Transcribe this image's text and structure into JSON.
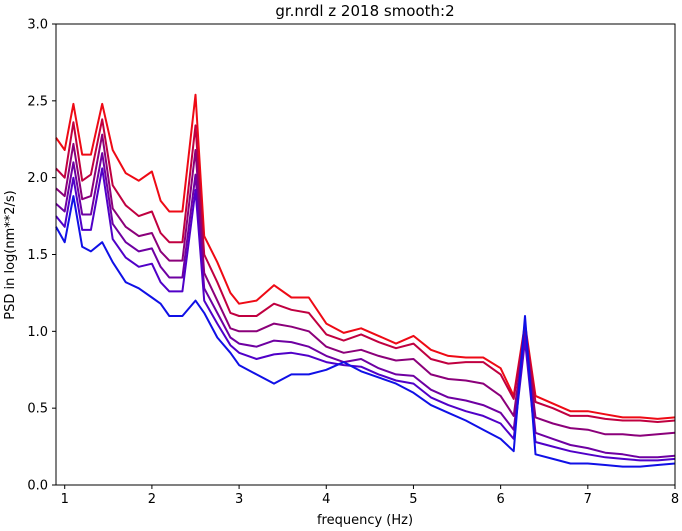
{
  "chart_data": {
    "type": "line",
    "title": "gr.nrdl z 2018 smooth:2",
    "xlabel": "frequency (Hz)",
    "ylabel": "PSD in log(nm**2/s)",
    "xlim": [
      0.9,
      8.0
    ],
    "ylim": [
      0.0,
      3.0
    ],
    "xticks": [
      1,
      2,
      3,
      4,
      5,
      6,
      7,
      8
    ],
    "xtick_labels": [
      "1",
      "2",
      "3",
      "4",
      "5",
      "6",
      "7",
      "8"
    ],
    "yticks": [
      0.0,
      0.5,
      1.0,
      1.5,
      2.0,
      2.5,
      3.0
    ],
    "ytick_labels": [
      "0.0",
      "0.5",
      "1.0",
      "1.5",
      "2.0",
      "2.5",
      "3.0"
    ],
    "grid": false,
    "legend": "none",
    "x": [
      0.9,
      1.0,
      1.1,
      1.2,
      1.3,
      1.43,
      1.55,
      1.7,
      1.85,
      2.0,
      2.1,
      2.2,
      2.35,
      2.5,
      2.6,
      2.75,
      2.9,
      3.0,
      3.2,
      3.4,
      3.6,
      3.8,
      4.0,
      4.2,
      4.4,
      4.6,
      4.8,
      5.0,
      5.2,
      5.4,
      5.6,
      5.8,
      6.0,
      6.15,
      6.28,
      6.4,
      6.6,
      6.8,
      7.0,
      7.2,
      7.4,
      7.6,
      7.8,
      8.0
    ],
    "series": [
      {
        "color": "#ee0a15",
        "values": [
          2.26,
          2.18,
          2.48,
          2.15,
          2.15,
          2.48,
          2.18,
          2.03,
          1.98,
          2.04,
          1.85,
          1.78,
          1.78,
          2.54,
          1.62,
          1.45,
          1.25,
          1.18,
          1.2,
          1.3,
          1.22,
          1.22,
          1.05,
          0.99,
          1.02,
          0.97,
          0.92,
          0.97,
          0.88,
          0.84,
          0.83,
          0.83,
          0.76,
          0.58,
          1.05,
          0.58,
          0.53,
          0.48,
          0.48,
          0.46,
          0.44,
          0.44,
          0.43,
          0.44
        ]
      },
      {
        "color": "#c00040",
        "values": [
          2.06,
          2.0,
          2.36,
          1.98,
          2.02,
          2.38,
          1.95,
          1.82,
          1.75,
          1.78,
          1.64,
          1.58,
          1.58,
          2.34,
          1.5,
          1.32,
          1.12,
          1.1,
          1.1,
          1.18,
          1.14,
          1.12,
          0.98,
          0.94,
          0.98,
          0.93,
          0.89,
          0.92,
          0.82,
          0.79,
          0.8,
          0.8,
          0.72,
          0.56,
          1.03,
          0.54,
          0.5,
          0.45,
          0.45,
          0.43,
          0.42,
          0.42,
          0.41,
          0.42
        ]
      },
      {
        "color": "#8b007a",
        "values": [
          1.93,
          1.88,
          2.22,
          1.86,
          1.88,
          2.28,
          1.8,
          1.68,
          1.62,
          1.64,
          1.52,
          1.46,
          1.46,
          2.18,
          1.38,
          1.2,
          1.02,
          1.0,
          1.0,
          1.05,
          1.03,
          1.0,
          0.9,
          0.86,
          0.88,
          0.84,
          0.81,
          0.82,
          0.72,
          0.69,
          0.68,
          0.66,
          0.58,
          0.45,
          1.0,
          0.44,
          0.4,
          0.37,
          0.36,
          0.33,
          0.33,
          0.32,
          0.33,
          0.34
        ]
      },
      {
        "color": "#6e00a2",
        "values": [
          1.83,
          1.78,
          2.1,
          1.76,
          1.76,
          2.16,
          1.7,
          1.58,
          1.52,
          1.54,
          1.42,
          1.35,
          1.35,
          2.02,
          1.28,
          1.12,
          0.96,
          0.92,
          0.9,
          0.94,
          0.93,
          0.9,
          0.84,
          0.8,
          0.82,
          0.76,
          0.72,
          0.71,
          0.62,
          0.57,
          0.55,
          0.52,
          0.47,
          0.36,
          0.97,
          0.34,
          0.3,
          0.26,
          0.24,
          0.21,
          0.2,
          0.18,
          0.18,
          0.19
        ]
      },
      {
        "color": "#5000c8",
        "values": [
          1.75,
          1.68,
          2.0,
          1.66,
          1.66,
          2.06,
          1.6,
          1.48,
          1.42,
          1.44,
          1.32,
          1.26,
          1.26,
          1.92,
          1.2,
          1.05,
          0.91,
          0.86,
          0.82,
          0.85,
          0.86,
          0.84,
          0.8,
          0.78,
          0.77,
          0.72,
          0.68,
          0.66,
          0.57,
          0.52,
          0.48,
          0.45,
          0.4,
          0.3,
          0.94,
          0.28,
          0.25,
          0.22,
          0.2,
          0.18,
          0.17,
          0.16,
          0.16,
          0.17
        ]
      },
      {
        "color": "#1010e6",
        "values": [
          1.68,
          1.58,
          1.88,
          1.55,
          1.52,
          1.58,
          1.45,
          1.32,
          1.28,
          1.22,
          1.18,
          1.1,
          1.1,
          1.2,
          1.12,
          0.96,
          0.86,
          0.78,
          0.72,
          0.66,
          0.72,
          0.72,
          0.75,
          0.8,
          0.74,
          0.7,
          0.66,
          0.6,
          0.52,
          0.47,
          0.42,
          0.36,
          0.3,
          0.22,
          1.1,
          0.2,
          0.17,
          0.14,
          0.14,
          0.13,
          0.12,
          0.12,
          0.13,
          0.14
        ]
      }
    ]
  }
}
